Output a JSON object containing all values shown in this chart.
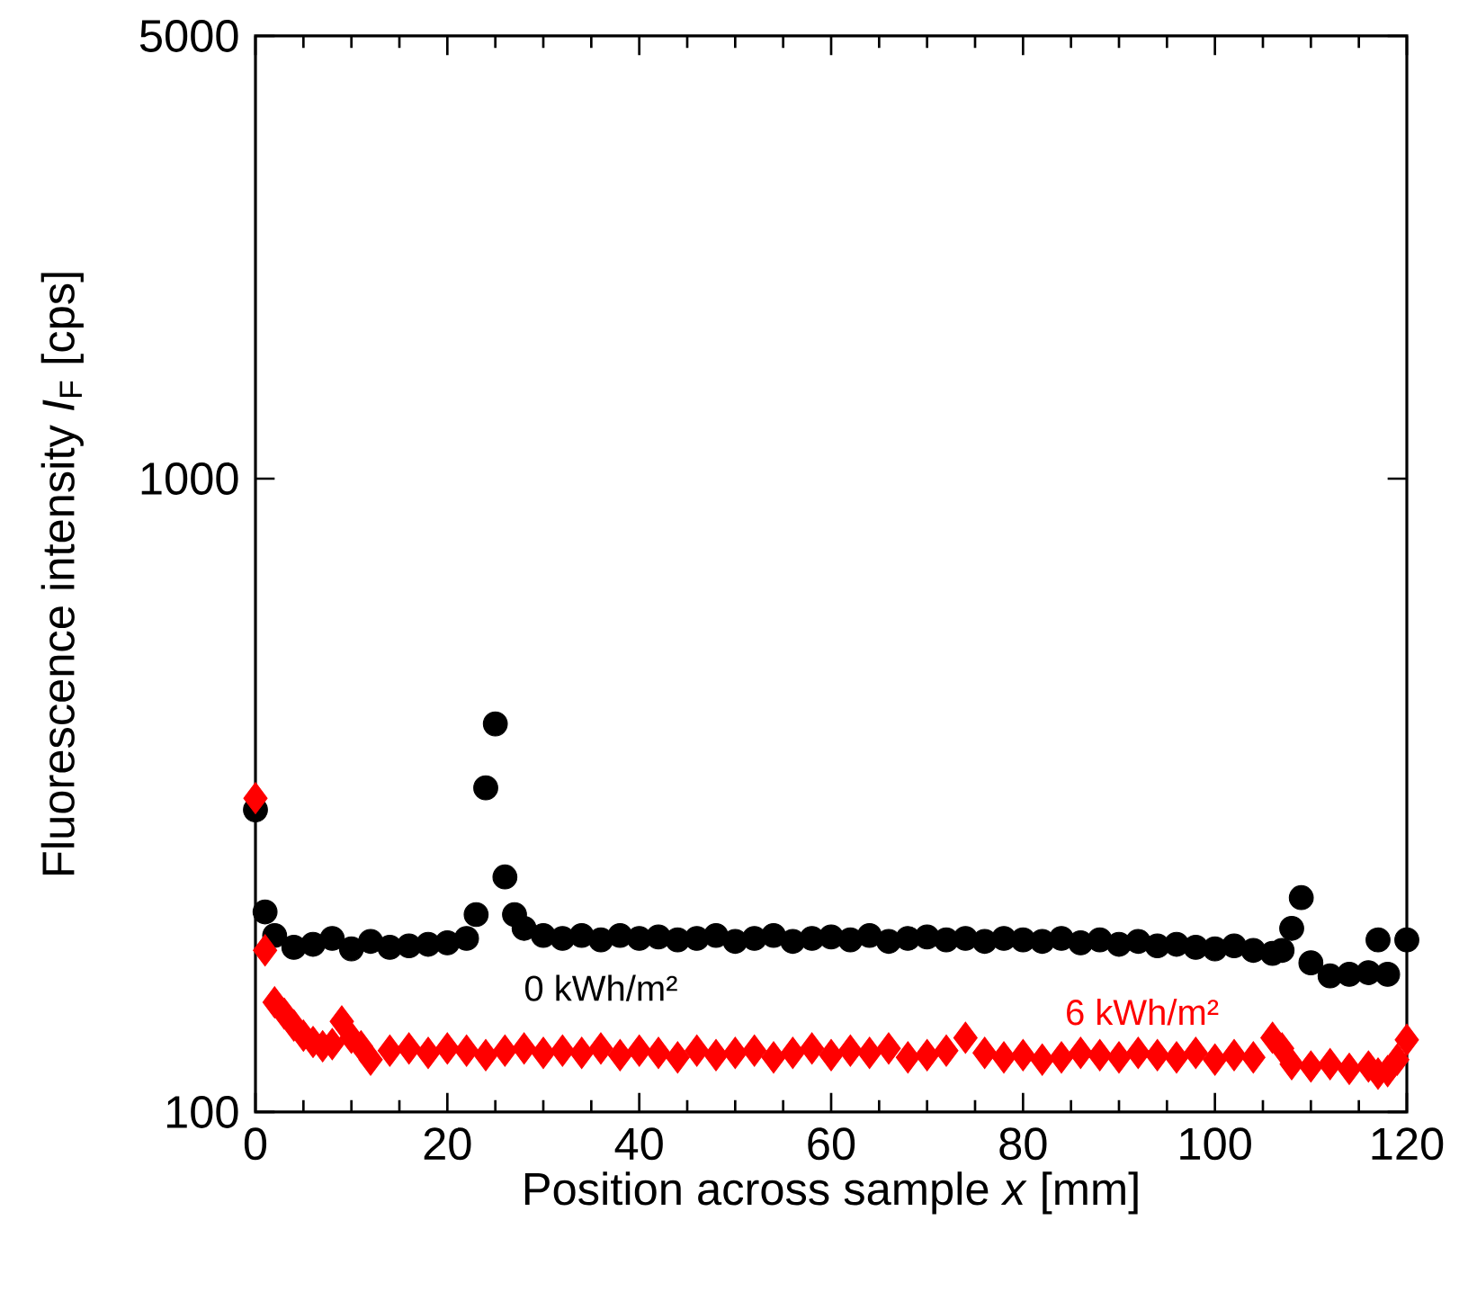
{
  "chart_data": {
    "type": "scatter",
    "xlabel": "Position across sample *x* [mm]",
    "ylabel": "Fluorescence intensity *I*$_{F}$ [cps]",
    "log": "y",
    "xlim": [
      0,
      120
    ],
    "ylim": [
      100,
      5000
    ],
    "xticks": [
      0,
      20,
      40,
      60,
      80,
      100,
      120
    ],
    "yticks": [
      100,
      1000,
      5000
    ],
    "series": [
      {
        "name": "0 kWh/m²",
        "color": "#000000",
        "marker": "circle",
        "x": [
          0,
          1,
          2,
          4,
          6,
          8,
          10,
          12,
          14,
          16,
          18,
          20,
          22,
          23,
          24,
          25,
          26,
          27,
          28,
          30,
          32,
          34,
          36,
          38,
          40,
          42,
          44,
          46,
          48,
          50,
          52,
          54,
          56,
          58,
          60,
          62,
          64,
          66,
          68,
          70,
          72,
          74,
          76,
          78,
          80,
          82,
          84,
          86,
          88,
          90,
          92,
          94,
          96,
          98,
          100,
          102,
          104,
          106,
          107,
          108,
          109,
          110,
          112,
          114,
          116,
          117,
          118,
          120
        ],
        "values": [
          300,
          207,
          190,
          182,
          184,
          188,
          181,
          186,
          182,
          183,
          184,
          185,
          188,
          205,
          325,
          410,
          235,
          205,
          195,
          190,
          188,
          190,
          187,
          190,
          188,
          189,
          187,
          188,
          190,
          186,
          188,
          190,
          186,
          188,
          189,
          187,
          190,
          186,
          188,
          189,
          187,
          188,
          186,
          188,
          187,
          186,
          188,
          185,
          187,
          184,
          186,
          183,
          184,
          182,
          181,
          183,
          180,
          178,
          180,
          195,
          218,
          172,
          164,
          165,
          166,
          187,
          165,
          187
        ]
      },
      {
        "name": "6 kWh/m²",
        "color": "#ff0000",
        "marker": "diamond",
        "x": [
          0,
          1,
          2,
          3,
          4,
          5,
          6,
          7,
          8,
          9,
          10,
          11,
          12,
          14,
          16,
          18,
          20,
          22,
          24,
          26,
          28,
          30,
          32,
          34,
          36,
          38,
          40,
          42,
          44,
          46,
          48,
          50,
          52,
          54,
          56,
          58,
          60,
          62,
          64,
          66,
          68,
          70,
          72,
          74,
          76,
          78,
          80,
          82,
          84,
          86,
          88,
          90,
          92,
          94,
          96,
          98,
          100,
          102,
          104,
          106,
          107,
          108,
          110,
          112,
          114,
          116,
          117,
          118,
          119,
          120
        ],
        "values": [
          313,
          180,
          149,
          143,
          137,
          132,
          129,
          127,
          128,
          139,
          131,
          127,
          121,
          125,
          126,
          124,
          126,
          125,
          123,
          125,
          126,
          124,
          125,
          124,
          126,
          123,
          125,
          124,
          122,
          125,
          123,
          124,
          125,
          122,
          124,
          126,
          123,
          125,
          124,
          126,
          122,
          123,
          125,
          131,
          124,
          122,
          123,
          121,
          122,
          124,
          123,
          122,
          124,
          123,
          122,
          124,
          121,
          123,
          122,
          131,
          126,
          119,
          118,
          119,
          117,
          118,
          115,
          116,
          121,
          130
        ]
      }
    ]
  }
}
